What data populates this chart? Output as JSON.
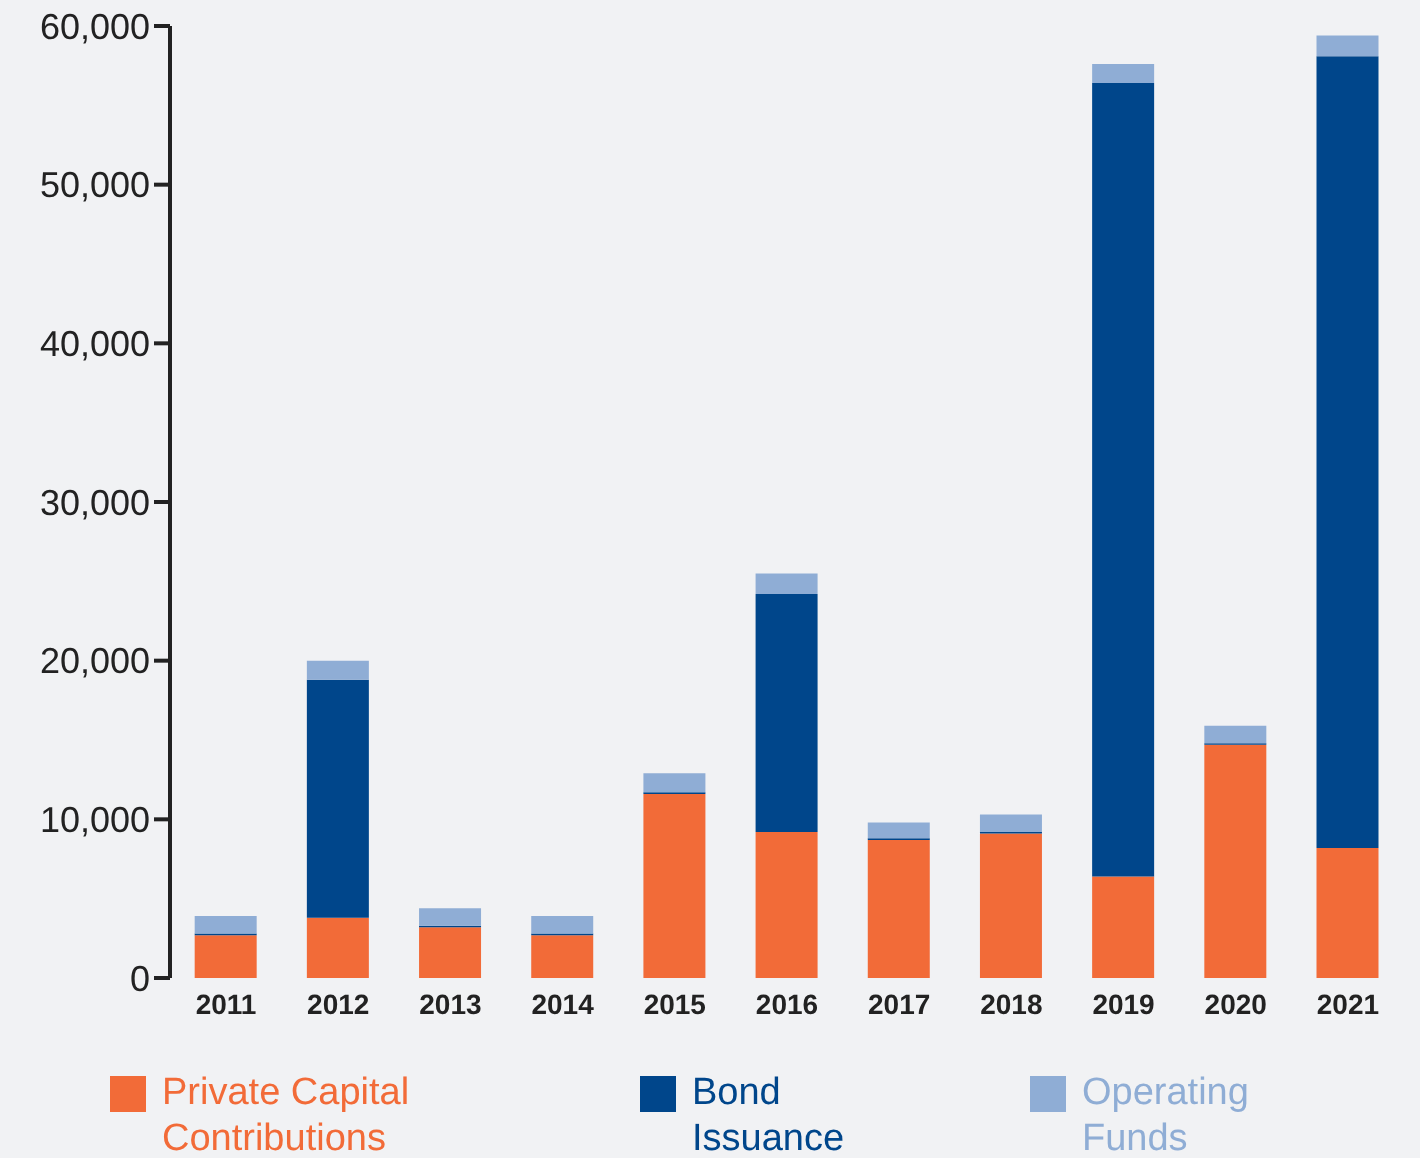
{
  "chart_data": {
    "type": "bar",
    "stacked": true,
    "categories": [
      "2011",
      "2012",
      "2013",
      "2014",
      "2015",
      "2016",
      "2017",
      "2018",
      "2019",
      "2020",
      "2021"
    ],
    "series": [
      {
        "name": "Private Capital Contributions",
        "color": "#f26b38",
        "values": [
          2700,
          3800,
          3200,
          2700,
          11600,
          9200,
          8700,
          9100,
          6400,
          14700,
          8200
        ]
      },
      {
        "name": "Bond Issuance",
        "color": "#00468b",
        "values": [
          100,
          15000,
          100,
          100,
          100,
          15000,
          100,
          100,
          50000,
          100,
          49900
        ]
      },
      {
        "name": "Operating Funds",
        "color": "#8fadd5",
        "values": [
          1100,
          1200,
          1100,
          1100,
          1200,
          1300,
          1000,
          1100,
          1200,
          1100,
          1300
        ]
      }
    ],
    "ylim": [
      0,
      60000
    ],
    "yticks": [
      0,
      {
        "value": 10000,
        "label": "10,000"
      },
      {
        "value": 20000,
        "label": "20,000"
      },
      {
        "value": 30000,
        "label": "30,000"
      },
      {
        "value": 40000,
        "label": "40,000"
      },
      {
        "value": 50000,
        "label": "50,000"
      },
      {
        "value": 60000,
        "label": "60,000"
      }
    ],
    "grid": false,
    "legend": "bottom"
  }
}
